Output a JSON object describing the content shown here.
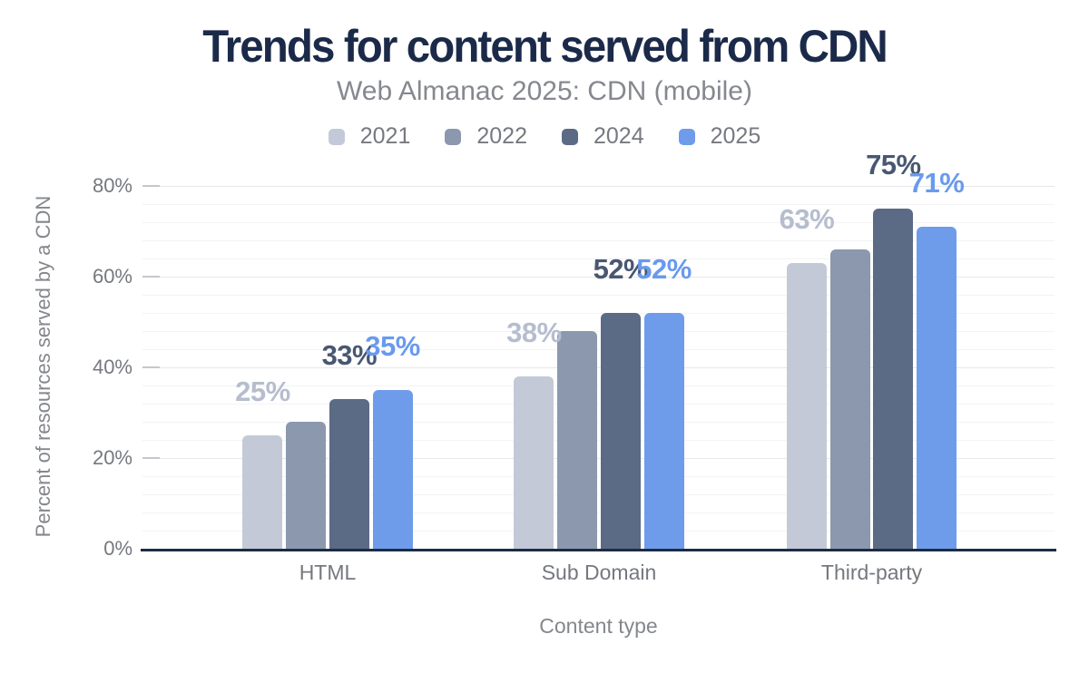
{
  "chart_data": {
    "type": "bar",
    "title": "Trends for content served from CDN",
    "subtitle": "Web Almanac 2025: CDN (mobile)",
    "xlabel": "Content type",
    "ylabel": "Percent of resources served by a CDN",
    "categories": [
      "HTML",
      "Sub Domain",
      "Third-party"
    ],
    "series": [
      {
        "name": "2021",
        "color": "#c3c9d7",
        "label_color": "#b5bdce",
        "values": [
          25,
          38,
          63
        ],
        "labels": [
          "25%",
          "38%",
          "63%"
        ]
      },
      {
        "name": "2022",
        "color": "#8c98ae",
        "label_color": null,
        "values": [
          28,
          48,
          66
        ],
        "labels": [
          null,
          null,
          null
        ]
      },
      {
        "name": "2024",
        "color": "#5b6a85",
        "label_color": "#495771",
        "values": [
          33,
          52,
          75
        ],
        "labels": [
          "33%",
          "52%",
          "75%"
        ]
      },
      {
        "name": "2025",
        "color": "#6e9ceb",
        "label_color": "#699aee",
        "values": [
          35,
          52,
          71
        ],
        "labels": [
          "35%",
          "52%",
          "71%"
        ]
      }
    ],
    "ylim": [
      0,
      80
    ],
    "yticks": [
      0,
      20,
      40,
      60,
      80
    ],
    "ytick_labels": [
      "0%",
      "20%",
      "40%",
      "60%",
      "80%"
    ],
    "minor_grid_step_percent": 4,
    "grid": true,
    "legend_position": "top",
    "axis_line_color": "#1d2c44",
    "title_color": "#1b2a49",
    "subtitle_color": "#85888e",
    "axis_text_color": "#75787e"
  }
}
